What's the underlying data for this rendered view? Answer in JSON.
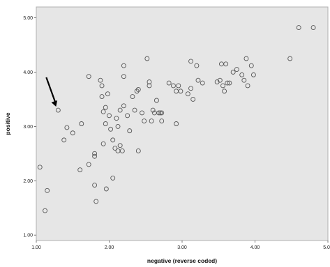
{
  "chart_data": {
    "type": "scatter",
    "title": "",
    "xlabel": "negative (reverse coded)",
    "ylabel": "positive",
    "xlim": [
      1,
      5
    ],
    "ylim": [
      0.9,
      5.2
    ],
    "x_ticks": [
      1,
      2,
      3,
      4,
      5
    ],
    "x_tick_labels": [
      "1.00",
      "2.00",
      "3.00",
      "4.00",
      "5.00"
    ],
    "y_ticks": [
      1,
      2,
      3,
      4,
      5
    ],
    "y_tick_labels": [
      "1.00",
      "2.00",
      "3.00",
      "4.00",
      "5.00"
    ],
    "grid": false,
    "plot_background": "#e6e6e6",
    "marker_color": "#555555",
    "annotation": {
      "type": "arrow",
      "target": [
        1.3,
        3.3
      ]
    },
    "points": [
      [
        1.05,
        2.25
      ],
      [
        1.15,
        1.82
      ],
      [
        1.12,
        1.45
      ],
      [
        1.3,
        3.3
      ],
      [
        1.38,
        2.75
      ],
      [
        1.42,
        2.98
      ],
      [
        1.5,
        2.88
      ],
      [
        1.62,
        3.05
      ],
      [
        1.6,
        2.2
      ],
      [
        1.72,
        3.92
      ],
      [
        1.72,
        2.3
      ],
      [
        1.8,
        2.45
      ],
      [
        1.8,
        2.5
      ],
      [
        1.8,
        1.92
      ],
      [
        1.82,
        1.62
      ],
      [
        1.88,
        3.85
      ],
      [
        1.9,
        3.75
      ],
      [
        1.9,
        3.55
      ],
      [
        1.92,
        3.27
      ],
      [
        1.92,
        2.68
      ],
      [
        1.95,
        3.35
      ],
      [
        1.95,
        3.05
      ],
      [
        1.96,
        1.85
      ],
      [
        1.98,
        3.6
      ],
      [
        2.0,
        3.2
      ],
      [
        2.02,
        2.95
      ],
      [
        2.05,
        2.05
      ],
      [
        2.08,
        2.6
      ],
      [
        2.05,
        2.75
      ],
      [
        2.1,
        3.15
      ],
      [
        2.12,
        3.0
      ],
      [
        2.12,
        2.55
      ],
      [
        2.15,
        3.3
      ],
      [
        2.15,
        2.65
      ],
      [
        2.18,
        2.55
      ],
      [
        2.2,
        4.12
      ],
      [
        2.2,
        3.92
      ],
      [
        2.2,
        3.38
      ],
      [
        2.25,
        3.2
      ],
      [
        2.28,
        2.92
      ],
      [
        2.32,
        3.55
      ],
      [
        2.35,
        3.3
      ],
      [
        2.38,
        3.65
      ],
      [
        2.4,
        3.68
      ],
      [
        2.4,
        2.55
      ],
      [
        2.45,
        3.25
      ],
      [
        2.48,
        3.1
      ],
      [
        2.52,
        4.25
      ],
      [
        2.55,
        3.82
      ],
      [
        2.55,
        3.75
      ],
      [
        2.58,
        3.1
      ],
      [
        2.6,
        3.3
      ],
      [
        2.62,
        3.25
      ],
      [
        2.65,
        3.48
      ],
      [
        2.68,
        3.25
      ],
      [
        2.7,
        3.25
      ],
      [
        2.72,
        3.25
      ],
      [
        2.72,
        3.1
      ],
      [
        2.82,
        3.8
      ],
      [
        2.88,
        3.75
      ],
      [
        2.92,
        3.65
      ],
      [
        2.92,
        3.05
      ],
      [
        2.95,
        3.75
      ],
      [
        2.98,
        3.65
      ],
      [
        3.08,
        3.6
      ],
      [
        3.12,
        4.2
      ],
      [
        3.12,
        3.7
      ],
      [
        3.15,
        3.5
      ],
      [
        3.2,
        4.12
      ],
      [
        3.22,
        3.85
      ],
      [
        3.28,
        3.8
      ],
      [
        3.48,
        3.82
      ],
      [
        3.52,
        3.85
      ],
      [
        3.54,
        4.15
      ],
      [
        3.56,
        3.75
      ],
      [
        3.58,
        3.65
      ],
      [
        3.6,
        4.15
      ],
      [
        3.62,
        3.8
      ],
      [
        3.65,
        3.8
      ],
      [
        3.7,
        4.0
      ],
      [
        3.75,
        4.05
      ],
      [
        3.82,
        3.95
      ],
      [
        3.85,
        3.85
      ],
      [
        3.88,
        4.25
      ],
      [
        3.9,
        3.75
      ],
      [
        3.95,
        4.12
      ],
      [
        3.98,
        3.95
      ],
      [
        4.48,
        4.25
      ],
      [
        4.6,
        4.82
      ],
      [
        4.8,
        4.82
      ]
    ]
  }
}
